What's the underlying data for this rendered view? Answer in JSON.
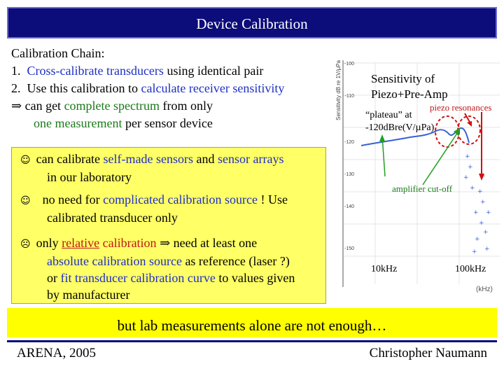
{
  "title": "Device Calibration",
  "chain": {
    "heading": "Calibration Chain:",
    "item1": {
      "num": "1.",
      "text_a": "Cross-calibrate transducers",
      "text_b": " using identical pair"
    },
    "item2": {
      "num": "2.",
      "text_a": "Use this calibration to ",
      "text_b": "calculate receiver sensitivity"
    },
    "item3": {
      "arrow": "⇒",
      "text_a": " can get ",
      "text_b": "complete spectrum",
      "text_c": " from only",
      "text_d": "one measurement",
      "text_e": " per sensor device"
    }
  },
  "box": {
    "smile": "☺",
    "frown": "☹",
    "p1": {
      "a": "can calibrate ",
      "b": "self-made sensors",
      "c": " and ",
      "d": "sensor arrays",
      "e": "in our laboratory"
    },
    "p2": {
      "a": "no need for ",
      "b": "complicated calibration source",
      "c": " ! Use",
      "d": "calibrated transducer only"
    },
    "p3": {
      "a": "only ",
      "b": "relative",
      "c": " calibration ",
      "arrow": "⇒",
      "d": " need at least one",
      "e": "absolute calibration source",
      "f": " as reference (laser ?)",
      "g": "or ",
      "h": "fit transducer calibration curve",
      "i": " to values given",
      "j": "by manufacturer"
    }
  },
  "chart": {
    "title_line1": "Sensitivity of",
    "title_line2": "Piezo+Pre-Amp",
    "annotation_piezo": "piezo resonances",
    "annotation_plateau1": "“plateau” at",
    "annotation_plateau2": "-120dBre(V/µPa)",
    "annotation_cutoff": "amplifier cut-off",
    "freq_10k": "10kHz",
    "freq_100k": "100kHz",
    "ylabel": "Sensitivity dB re 1V/µPa",
    "yticks": [
      "-100",
      "-110",
      "-120",
      "-130",
      "-140",
      "-150"
    ],
    "xunit": "(kHz)"
  },
  "banner": "but lab measurements alone are not enough…",
  "footer": {
    "left": "ARENA, 2005",
    "right": "Christopher Naumann"
  },
  "colors": {
    "title_bg": "#0c0c7a",
    "box_bg": "#ffff66",
    "banner_bg": "#ffff00",
    "blue_text": "#1e2fc4",
    "red_text": "#c01818",
    "green_text": "#1a7a1a",
    "curve": "#3a5fd8",
    "arrow_red": "#d01010",
    "arrow_green": "#20a020"
  }
}
